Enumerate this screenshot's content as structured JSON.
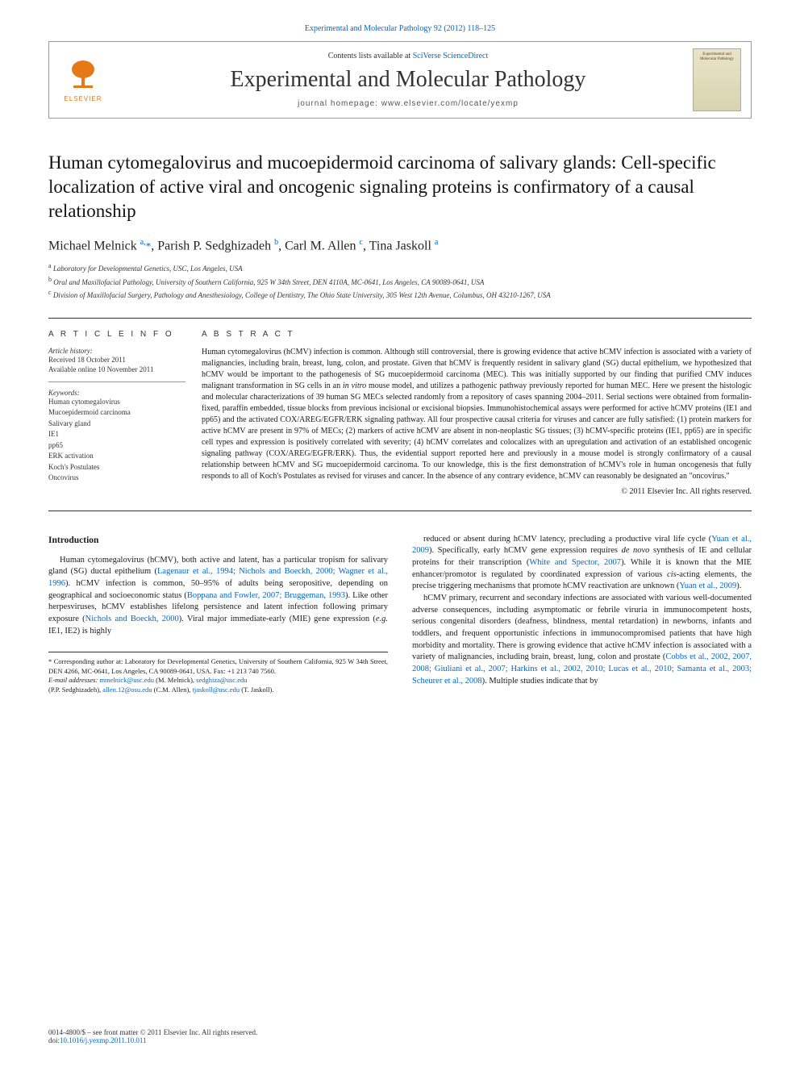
{
  "top_link": "Experimental and Molecular Pathology 92 (2012) 118–125",
  "header": {
    "contents_prefix": "Contents lists available at ",
    "contents_link": "SciVerse ScienceDirect",
    "journal_name": "Experimental and Molecular Pathology",
    "homepage_prefix": "journal homepage: ",
    "homepage_url": "www.elsevier.com/locate/yexmp",
    "elsevier_label": "ELSEVIER",
    "cover_title": "Experimental and Molecular Pathology"
  },
  "title": "Human cytomegalovirus and mucoepidermoid carcinoma of salivary glands: Cell-specific localization of active viral and oncogenic signaling proteins is confirmatory of a causal relationship",
  "authors_html": "Michael Melnick <sup>a,</sup><span class='star'>*</span>, Parish P. Sedghizadeh <sup>b</sup>, Carl M. Allen <sup>c</sup>, Tina Jaskoll <sup>a</sup>",
  "affiliations": {
    "a": "Laboratory for Developmental Genetics, USC, Los Angeles, USA",
    "b": "Oral and Maxillofacial Pathology, University of Southern California, 925 W 34th Street, DEN 4110A, MC-0641, Los Angeles, CA 90089-0641, USA",
    "c": "Division of Maxillofacial Surgery, Pathology and Anesthesiology, College of Dentistry, The Ohio State University, 305 West 12th Avenue, Columbus, OH 43210-1267, USA"
  },
  "info": {
    "heading": "A R T I C L E   I N F O",
    "history_label": "Article history:",
    "received": "Received 18 October 2011",
    "online": "Available online 10 November 2011",
    "keywords_label": "Keywords:",
    "keywords": [
      "Human cytomegalovirus",
      "Mucoepidermoid carcinoma",
      "Salivary gland",
      "IE1",
      "pp65",
      "ERK activation",
      "Koch's Postulates",
      "Oncovirus"
    ]
  },
  "abstract": {
    "heading": "A B S T R A C T",
    "text": "Human cytomegalovirus (hCMV) infection is common. Although still controversial, there is growing evidence that active hCMV infection is associated with a variety of malignancies, including brain, breast, lung, colon, and prostate. Given that hCMV is frequently resident in salivary gland (SG) ductal epithelium, we hypothesized that hCMV would be important to the pathogenesis of SG mucoepidermoid carcinoma (MEC). This was initially supported by our finding that purified CMV induces malignant transformation in SG cells in an in vitro mouse model, and utilizes a pathogenic pathway previously reported for human MEC. Here we present the histologic and molecular characterizations of 39 human SG MECs selected randomly from a repository of cases spanning 2004–2011. Serial sections were obtained from formalin-fixed, paraffin embedded, tissue blocks from previous incisional or excisional biopsies. Immunohistochemical assays were performed for active hCMV proteins (IE1 and pp65) and the activated COX/AREG/EGFR/ERK signaling pathway. All four prospective causal criteria for viruses and cancer are fully satisfied: (1) protein markers for active hCMV are present in 97% of MECs; (2) markers of active hCMV are absent in non-neoplastic SG tissues; (3) hCMV-specific proteins (IE1, pp65) are in specific cell types and expression is positively correlated with severity; (4) hCMV correlates and colocalizes with an upregulation and activation of an established oncogenic signaling pathway (COX/AREG/EGFR/ERK). Thus, the evidential support reported here and previously in a mouse model is strongly confirmatory of a causal relationship between hCMV and SG mucoepidermoid carcinoma. To our knowledge, this is the first demonstration of hCMV's role in human oncogenesis that fully responds to all of Koch's Postulates as revised for viruses and cancer. In the absence of any contrary evidence, hCMV can reasonably be designated an \"oncovirus.\"",
    "copyright": "© 2011 Elsevier Inc. All rights reserved."
  },
  "body": {
    "intro_heading": "Introduction",
    "col1_p1_pre": "Human cytomegalovirus (hCMV), both active and latent, has a particular tropism for salivary gland (SG) ductal epithelium (",
    "col1_p1_ref1": "Lagenaur et al., 1994; Nichols and Boeckh, 2000; Wagner et al., 1996",
    "col1_p1_mid1": "). hCMV infection is common, 50–95% of adults being seropositive, depending on geographical and socioeconomic status (",
    "col1_p1_ref2": "Boppana and Fowler, 2007; Bruggeman, 1993",
    "col1_p1_mid2": "). Like other herpesviruses, hCMV establishes lifelong persistence and latent infection following primary exposure (",
    "col1_p1_ref3": "Nichols and Boeckh, 2000",
    "col1_p1_end": "). Viral major immediate-early (MIE) gene expression (e.g. IE1, IE2) is highly",
    "col2_p1_pre": "reduced or absent during hCMV latency, precluding a productive viral life cycle (",
    "col2_p1_ref1": "Yuan et al., 2009",
    "col2_p1_mid1": "). Specifically, early hCMV gene expression requires de novo synthesis of IE and cellular proteins for their transcription (",
    "col2_p1_ref2": "White and Spector, 2007",
    "col2_p1_mid2": "). While it is known that the MIE enhancer/promotor is regulated by coordinated expression of various cis-acting elements, the precise triggering mechanisms that promote hCMV reactivation are unknown (",
    "col2_p1_ref3": "Yuan et al., 2009",
    "col2_p1_end": ").",
    "col2_p2_pre": "hCMV primary, recurrent and secondary infections are associated with various well-documented adverse consequences, including asymptomatic or febrile viruria in immunocompetent hosts, serious congenital disorders (deafness, blindness, mental retardation) in newborns, infants and toddlers, and frequent opportunistic infections in immunocompromised patients that have high morbidity and mortality. There is growing evidence that active hCMV infection is associated with a variety of malignancies, including brain, breast, lung, colon and prostate (",
    "col2_p2_ref": "Cobbs et al., 2002, 2007, 2008; Giuliani et al., 2007; Harkins et al., 2002, 2010; Lucas et al., 2010; Samanta et al., 2003; Scheurer et al., 2008",
    "col2_p2_end": "). Multiple studies indicate that by"
  },
  "footnotes": {
    "corr": "* Corresponding author at: Laboratory for Developmental Genetics, University of Southern California, 925 W 34th Street, DEN 4266, MC-0641, Los Angeles, CA 90089-0641, USA. Fax: +1 213 740 7560.",
    "emails_label": "E-mail addresses:",
    "e1": "mmelnick@usc.edu",
    "n1": "(M. Melnick),",
    "e2": "sedghiza@usc.edu",
    "n2": "(P.P. Sedghizadeh),",
    "e3": "allen.12@osu.edu",
    "n3": "(C.M. Allen),",
    "e4": "tjaskoll@usc.edu",
    "n4": "(T. Jaskoll)."
  },
  "footer": {
    "line1": "0014-4800/$ – see front matter © 2011 Elsevier Inc. All rights reserved.",
    "doi_label": "doi:",
    "doi": "10.1016/j.yexmp.2011.10.011"
  },
  "colors": {
    "link": "#0066cc",
    "elsevier": "#e67817",
    "text": "#1a1a1a",
    "rule": "#333333"
  }
}
